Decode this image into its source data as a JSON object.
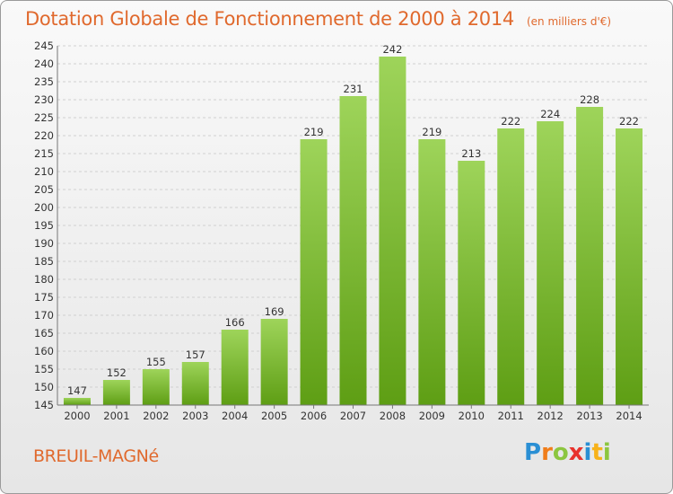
{
  "title": "Dotation Globale de Fonctionnement de 2000 à 2014",
  "unit_note": "(en milliers d'€)",
  "commune": "BREUIL-MAGNé",
  "logo": {
    "text": "Proxiti",
    "letters": [
      {
        "ch": "P",
        "color": "#2a8fd4"
      },
      {
        "ch": "r",
        "color": "#f07d1a"
      },
      {
        "ch": "o",
        "color": "#8cc63f"
      },
      {
        "ch": "x",
        "color": "#e8322d"
      },
      {
        "ch": "i",
        "color": "#2a8fd4"
      },
      {
        "ch": "t",
        "color": "#f7b21a"
      },
      {
        "ch": "i",
        "color": "#8cc63f"
      }
    ]
  },
  "colors": {
    "bar_top": "#9ed45a",
    "bar_bottom": "#5e9e14",
    "grid": "#d0d0d0",
    "axis_text": "#333333",
    "title": "#e0692d"
  },
  "chart_data": {
    "type": "bar",
    "categories": [
      "2000",
      "2001",
      "2002",
      "2003",
      "2004",
      "2005",
      "2006",
      "2007",
      "2008",
      "2009",
      "2010",
      "2011",
      "2012",
      "2013",
      "2014"
    ],
    "values": [
      147,
      152,
      155,
      157,
      166,
      169,
      219,
      231,
      242,
      219,
      213,
      222,
      224,
      228,
      222
    ],
    "title": "Dotation Globale de Fonctionnement de 2000 à 2014",
    "xlabel": "",
    "ylabel": "",
    "ylim": [
      145,
      245
    ],
    "yticks": [
      145,
      150,
      155,
      160,
      165,
      170,
      175,
      180,
      185,
      190,
      195,
      200,
      205,
      210,
      215,
      220,
      225,
      230,
      235,
      240,
      245
    ],
    "grid": true,
    "data_labels": true
  }
}
